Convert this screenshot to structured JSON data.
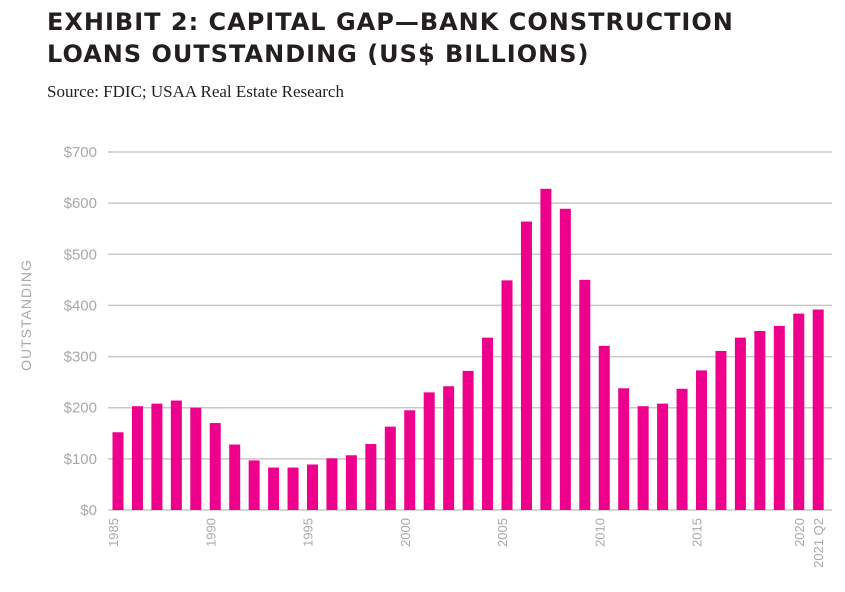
{
  "header": {
    "title_line1": "EXHIBIT 2: CAPITAL GAP—BANK CONSTRUCTION",
    "title_line2": "LOANS OUTSTANDING (US$ BILLIONS)",
    "source": "Source: FDIC; USAA Real Estate Research"
  },
  "colors": {
    "bar": "#ec008c",
    "grid": "#c7c8ca",
    "tick_text": "#a7a9ac"
  },
  "chart_data": {
    "type": "bar",
    "ylabel": "OUTSTANDING",
    "ylim": [
      0,
      700
    ],
    "y_ticks": [
      0,
      100,
      200,
      300,
      400,
      500,
      600,
      700
    ],
    "y_tick_labels": [
      "$0",
      "$100",
      "$200",
      "$300",
      "$400",
      "$500",
      "$600",
      "$700"
    ],
    "grid": true,
    "categories": [
      "1985",
      "1986",
      "1987",
      "1988",
      "1989",
      "1990",
      "1991",
      "1992",
      "1993",
      "1994",
      "1995",
      "1996",
      "1997",
      "1998",
      "1999",
      "2000",
      "2001",
      "2002",
      "2003",
      "2004",
      "2005",
      "2006",
      "2007",
      "2008",
      "2009",
      "2010",
      "2011",
      "2012",
      "2013",
      "2014",
      "2015",
      "2016",
      "2017",
      "2018",
      "2019",
      "2020",
      "2021 Q2"
    ],
    "values": [
      152,
      203,
      208,
      214,
      200,
      170,
      128,
      97,
      83,
      83,
      89,
      101,
      107,
      129,
      163,
      195,
      230,
      242,
      272,
      337,
      449,
      564,
      628,
      589,
      450,
      321,
      238,
      203,
      208,
      237,
      273,
      311,
      337,
      350,
      360,
      384,
      392
    ],
    "x_tick_labels": [
      "1985",
      "1990",
      "1995",
      "2000",
      "2005",
      "2010",
      "2015",
      "2020",
      "2021 Q2"
    ]
  }
}
